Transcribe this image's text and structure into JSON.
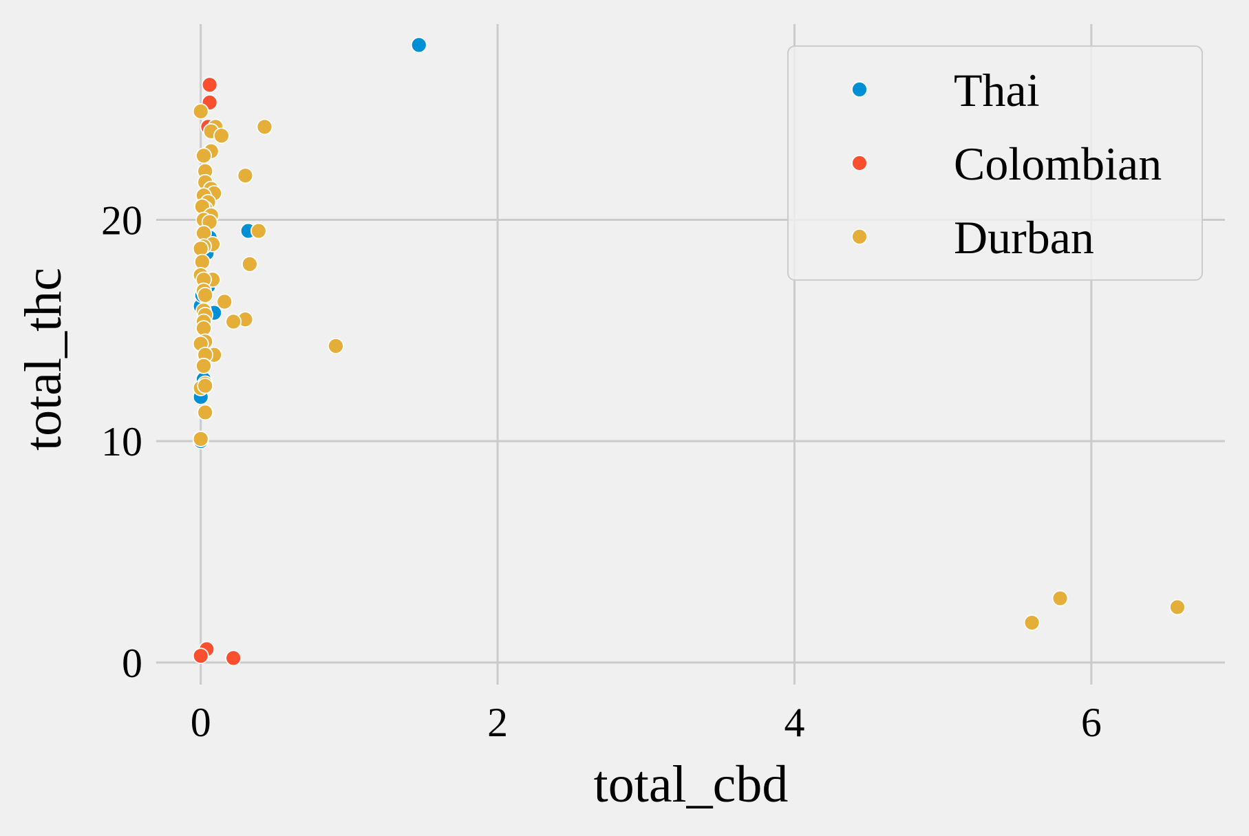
{
  "chart_data": {
    "type": "scatter",
    "title": "",
    "xlabel": "total_cbd",
    "ylabel": "total_thc",
    "xlim": [
      -0.3,
      6.9
    ],
    "ylim": [
      -1,
      29
    ],
    "xticks": [
      0,
      2,
      4,
      6
    ],
    "yticks": [
      0,
      10,
      20
    ],
    "grid": true,
    "legend": {
      "position": "top-right"
    },
    "series": [
      {
        "name": "Thai",
        "color": "#008fd5",
        "points": [
          [
            1.47,
            27.9
          ],
          [
            0.32,
            19.5
          ],
          [
            0.09,
            15.8
          ],
          [
            0.0,
            16.1
          ],
          [
            0.0,
            12.0
          ],
          [
            0.0,
            10.0
          ],
          [
            0.04,
            18.5
          ],
          [
            0.02,
            12.8
          ],
          [
            0.05,
            17.0
          ],
          [
            0.03,
            14.5
          ],
          [
            0.06,
            19.2
          ],
          [
            0.01,
            16.6
          ]
        ]
      },
      {
        "name": "Colombian",
        "color": "#fc4f30",
        "points": [
          [
            0.06,
            26.1
          ],
          [
            0.06,
            25.3
          ],
          [
            0.05,
            24.2
          ],
          [
            0.04,
            0.6
          ],
          [
            0.0,
            0.3
          ],
          [
            0.22,
            0.2
          ]
        ]
      },
      {
        "name": "Durban",
        "color": "#e5ae38",
        "points": [
          [
            0.0,
            24.9
          ],
          [
            0.1,
            24.2
          ],
          [
            0.07,
            24.0
          ],
          [
            0.14,
            23.8
          ],
          [
            0.43,
            24.2
          ],
          [
            0.07,
            23.1
          ],
          [
            0.02,
            22.9
          ],
          [
            0.03,
            22.2
          ],
          [
            0.3,
            22.0
          ],
          [
            0.03,
            21.7
          ],
          [
            0.07,
            21.4
          ],
          [
            0.09,
            21.2
          ],
          [
            0.02,
            21.1
          ],
          [
            0.05,
            20.8
          ],
          [
            0.03,
            20.5
          ],
          [
            0.01,
            20.6
          ],
          [
            0.07,
            20.2
          ],
          [
            0.02,
            20.0
          ],
          [
            0.06,
            19.9
          ],
          [
            0.02,
            19.4
          ],
          [
            0.39,
            19.5
          ],
          [
            0.08,
            18.9
          ],
          [
            0.02,
            18.8
          ],
          [
            0.0,
            18.7
          ],
          [
            0.01,
            18.1
          ],
          [
            0.33,
            18.0
          ],
          [
            0.0,
            17.5
          ],
          [
            0.08,
            17.3
          ],
          [
            0.02,
            17.3
          ],
          [
            0.02,
            16.8
          ],
          [
            0.03,
            16.6
          ],
          [
            0.16,
            16.3
          ],
          [
            0.02,
            15.9
          ],
          [
            0.03,
            15.7
          ],
          [
            0.02,
            15.4
          ],
          [
            0.3,
            15.5
          ],
          [
            0.22,
            15.4
          ],
          [
            0.02,
            15.1
          ],
          [
            0.03,
            14.5
          ],
          [
            0.0,
            14.4
          ],
          [
            0.91,
            14.3
          ],
          [
            0.09,
            13.9
          ],
          [
            0.03,
            13.9
          ],
          [
            0.02,
            13.4
          ],
          [
            0.03,
            12.6
          ],
          [
            0.0,
            12.4
          ],
          [
            0.03,
            12.5
          ],
          [
            0.03,
            11.3
          ],
          [
            0.0,
            10.1
          ],
          [
            5.6,
            1.8
          ],
          [
            5.79,
            2.9
          ],
          [
            6.58,
            2.5
          ]
        ]
      }
    ]
  }
}
